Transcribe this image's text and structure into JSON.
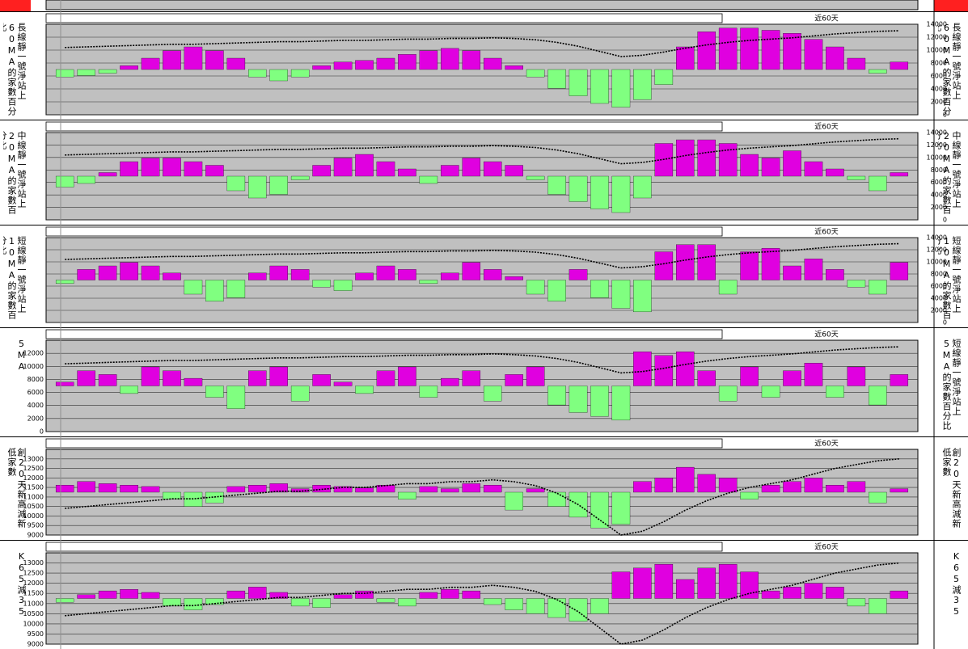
{
  "chart_data": [
    {
      "type": "combo",
      "left_label": "長線靜一號淨站上60MA的家數百分比",
      "right_label": "長線靜一號淨站上60MA的家數百分比",
      "note": "近60天",
      "ylim": [
        -60,
        60
      ],
      "y2lim": [
        0,
        14000
      ],
      "y2ticks": [
        0,
        2000,
        4000,
        6000,
        8000,
        10000,
        12000,
        14000
      ],
      "y2_side": "right",
      "grid": true,
      "series": [
        {
          "color": "#e000e0",
          "neg_color": "#80ff80",
          "values": [
            -10,
            -8,
            -5,
            5,
            15,
            25,
            30,
            25,
            15,
            -10,
            -15,
            -10,
            5,
            10,
            12,
            15,
            20,
            25,
            28,
            25,
            15,
            5,
            -10,
            -25,
            -35,
            -45,
            -50,
            -40,
            -20,
            30,
            50,
            55,
            55,
            52,
            48,
            40,
            30,
            15,
            -5,
            10
          ]
        },
        {
          "axis": "y2",
          "color": "#000000",
          "values": [
            10400,
            10500,
            10600,
            10700,
            10800,
            10900,
            10900,
            11000,
            11100,
            11200,
            11300,
            11300,
            11400,
            11500,
            11500,
            11600,
            11700,
            11700,
            11800,
            11800,
            11900,
            11800,
            11600,
            11200,
            10600,
            9800,
            9000,
            9200,
            9700,
            10300,
            10800,
            11200,
            11500,
            11700,
            11900,
            12200,
            12500,
            12700,
            12900,
            13000
          ]
        }
      ]
    },
    {
      "type": "combo",
      "left_label": "中線靜一號淨站上20MA的家數百分比",
      "right_label": "中線靜一號淨站上20MA的家數百分比",
      "note": "近60天",
      "ylim": [
        -60,
        60
      ],
      "y2lim": [
        0,
        14000
      ],
      "y2ticks": [
        0,
        2000,
        4000,
        6000,
        8000,
        10000,
        12000,
        14000
      ],
      "y2_side": "right",
      "grid": true,
      "series": [
        {
          "color": "#e000e0",
          "neg_color": "#80ff80",
          "values": [
            -15,
            -10,
            5,
            20,
            25,
            25,
            20,
            15,
            -20,
            -30,
            -25,
            -5,
            15,
            25,
            30,
            20,
            10,
            -10,
            15,
            25,
            20,
            15,
            -5,
            -25,
            -35,
            -45,
            -50,
            -30,
            45,
            50,
            50,
            45,
            30,
            25,
            35,
            20,
            10,
            -5,
            -20,
            5
          ]
        },
        {
          "axis": "y2",
          "color": "#000000",
          "values": [
            10400,
            10500,
            10600,
            10700,
            10800,
            10900,
            10900,
            11000,
            11100,
            11200,
            11300,
            11300,
            11400,
            11500,
            11500,
            11600,
            11700,
            11700,
            11800,
            11800,
            11900,
            11800,
            11600,
            11200,
            10600,
            9800,
            9000,
            9200,
            9700,
            10300,
            10800,
            11200,
            11500,
            11700,
            11900,
            12200,
            12500,
            12700,
            12900,
            13000
          ]
        }
      ]
    },
    {
      "type": "combo",
      "left_label": "短線靜一號淨站上10MA的家數百分比",
      "right_label": "短線靜一號淨站上10MA的家數百分比",
      "note": "近60天",
      "ylim": [
        -60,
        60
      ],
      "y2lim": [
        0,
        14000
      ],
      "y2ticks": [
        0,
        2000,
        4000,
        6000,
        8000,
        10000,
        12000,
        14000
      ],
      "y2_side": "right",
      "grid": true,
      "series": [
        {
          "color": "#e000e0",
          "neg_color": "#80ff80",
          "values": [
            -5,
            15,
            20,
            25,
            20,
            10,
            -20,
            -30,
            -25,
            10,
            20,
            15,
            -10,
            -15,
            10,
            20,
            15,
            -5,
            10,
            25,
            15,
            5,
            -20,
            -30,
            15,
            -25,
            -40,
            -45,
            40,
            50,
            50,
            -20,
            40,
            45,
            20,
            30,
            15,
            -10,
            -20,
            25
          ]
        },
        {
          "axis": "y2",
          "color": "#000000",
          "values": [
            10400,
            10500,
            10600,
            10700,
            10800,
            10900,
            10900,
            11000,
            11100,
            11200,
            11300,
            11300,
            11400,
            11500,
            11500,
            11600,
            11700,
            11700,
            11800,
            11800,
            11900,
            11800,
            11600,
            11200,
            10600,
            9800,
            9000,
            9200,
            9700,
            10300,
            10800,
            11200,
            11500,
            11700,
            11900,
            12200,
            12500,
            12700,
            12900,
            13000
          ]
        }
      ]
    },
    {
      "type": "combo",
      "left_label": "5MA",
      "right_label": "短線靜一號淨站上5MA的家數百分比",
      "note": "近60天",
      "ylim": [
        -60,
        60
      ],
      "y2lim": [
        0,
        14000
      ],
      "y2ticks": [
        0,
        2000,
        4000,
        6000,
        8000,
        10000,
        12000
      ],
      "y2_side": "left",
      "grid": true,
      "series": [
        {
          "color": "#e000e0",
          "neg_color": "#80ff80",
          "values": [
            5,
            20,
            15,
            -10,
            25,
            20,
            10,
            -15,
            -30,
            20,
            25,
            -20,
            15,
            5,
            -10,
            20,
            25,
            -15,
            10,
            20,
            -20,
            15,
            25,
            -25,
            -35,
            -40,
            -45,
            45,
            40,
            45,
            20,
            -20,
            25,
            -15,
            20,
            30,
            -15,
            25,
            -25,
            15
          ]
        },
        {
          "axis": "y2",
          "color": "#000000",
          "values": [
            10400,
            10500,
            10600,
            10700,
            10800,
            10900,
            10900,
            11000,
            11100,
            11200,
            11300,
            11300,
            11400,
            11500,
            11500,
            11600,
            11700,
            11700,
            11800,
            11800,
            11900,
            11800,
            11600,
            11200,
            10600,
            9800,
            9000,
            9200,
            9700,
            10300,
            10800,
            11200,
            11500,
            11700,
            11900,
            12200,
            12500,
            12700,
            12900,
            13000
          ]
        }
      ]
    },
    {
      "type": "combo",
      "left_label": "創20天新高減新低家數",
      "right_label": "創20天新高減新低家數",
      "note": "近60天",
      "ylim": [
        -60,
        60
      ],
      "y2lim": [
        9000,
        13500
      ],
      "y2ticks": [
        9000,
        9500,
        10000,
        10500,
        11000,
        11500,
        12000,
        12500,
        13000
      ],
      "y2_side": "left",
      "grid": true,
      "series": [
        {
          "color": "#e000e0",
          "neg_color": "#80ff80",
          "values": [
            10,
            15,
            12,
            10,
            8,
            -10,
            -20,
            -15,
            8,
            10,
            12,
            5,
            10,
            8,
            6,
            10,
            -10,
            8,
            5,
            12,
            10,
            -25,
            5,
            -20,
            -35,
            -50,
            -45,
            15,
            20,
            35,
            25,
            20,
            -10,
            10,
            15,
            20,
            10,
            15,
            -15,
            5
          ]
        },
        {
          "axis": "y2",
          "color": "#000000",
          "values": [
            10400,
            10500,
            10600,
            10700,
            10800,
            10900,
            10900,
            11000,
            11100,
            11200,
            11300,
            11300,
            11400,
            11500,
            11500,
            11600,
            11700,
            11700,
            11800,
            11800,
            11900,
            11800,
            11600,
            11200,
            10600,
            9800,
            9000,
            9200,
            9700,
            10300,
            10800,
            11200,
            11500,
            11700,
            11900,
            12200,
            12500,
            12700,
            12900,
            13000
          ]
        }
      ]
    },
    {
      "type": "combo",
      "left_label": "K65減35",
      "right_label": "K65減35",
      "note": "近60天",
      "ylim": [
        -60,
        60
      ],
      "y2lim": [
        9000,
        13500
      ],
      "y2ticks": [
        9000,
        9500,
        10000,
        10500,
        11000,
        11500,
        12000,
        12500,
        13000
      ],
      "y2_side": "left",
      "grid": true,
      "series": [
        {
          "color": "#e000e0",
          "neg_color": "#80ff80",
          "values": [
            -5,
            5,
            10,
            12,
            8,
            -10,
            -15,
            -8,
            10,
            15,
            8,
            -10,
            -12,
            5,
            10,
            -5,
            -10,
            8,
            12,
            10,
            -8,
            -15,
            -20,
            -25,
            -30,
            -20,
            35,
            40,
            45,
            25,
            40,
            45,
            35,
            10,
            15,
            20,
            15,
            -10,
            -20,
            10
          ]
        },
        {
          "axis": "y2",
          "color": "#000000",
          "values": [
            10400,
            10500,
            10600,
            10700,
            10800,
            10900,
            10900,
            11000,
            11100,
            11200,
            11300,
            11300,
            11400,
            11500,
            11500,
            11600,
            11700,
            11700,
            11800,
            11800,
            11900,
            11800,
            11600,
            11200,
            10600,
            9800,
            9000,
            9200,
            9700,
            10300,
            10800,
            11200,
            11500,
            11700,
            11900,
            12200,
            12500,
            12700,
            12900,
            13000
          ]
        }
      ]
    }
  ]
}
